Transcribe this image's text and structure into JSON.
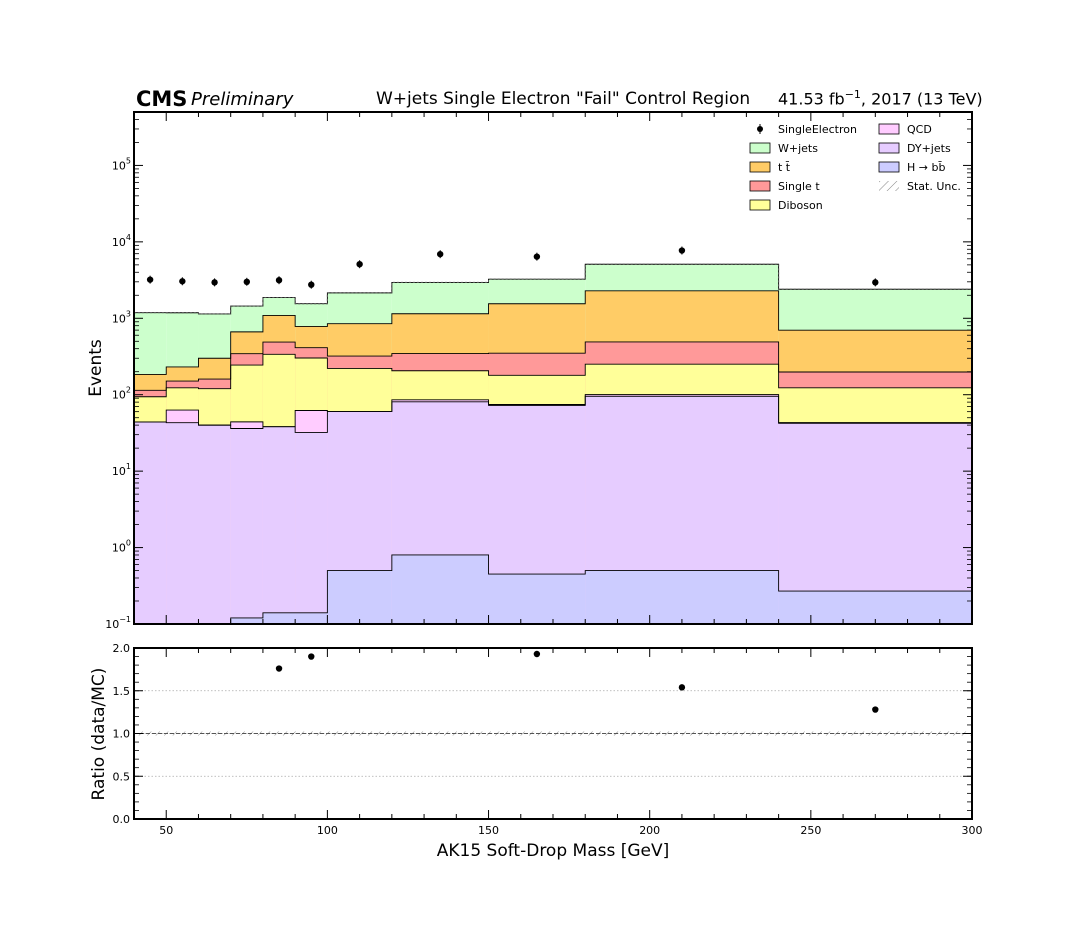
{
  "header": {
    "experiment": "CMS",
    "status": "Preliminary",
    "title": "W+jets Single Electron \"Fail\" Control Region",
    "lumi_value": "41.53 fb",
    "lumi_exp": "−1",
    "lumi_suffix": ", 2017 (13 TeV)"
  },
  "chart_data": [
    {
      "type": "area",
      "panel": "main",
      "stacked": true,
      "step": true,
      "log_y": true,
      "xlim": [
        40,
        300
      ],
      "ylim": [
        0.1,
        500000
      ],
      "ylabel": "Events",
      "bin_edges": [
        40,
        50,
        60,
        70,
        80,
        90,
        100,
        120,
        150,
        180,
        240,
        300
      ],
      "series": [
        {
          "name": "H → bb̄",
          "color": "#ccccff",
          "values": [
            0,
            0,
            0,
            0.12,
            0.14,
            0.14,
            0.5,
            0.8,
            0.45,
            0.5,
            0.27
          ]
        },
        {
          "name": "DY+jets",
          "color": "#e6ccff",
          "values": [
            44,
            43,
            40,
            36,
            38,
            32,
            60,
            80,
            72,
            95,
            42
          ]
        },
        {
          "name": "QCD",
          "color": "#ffccff",
          "values": [
            0,
            20,
            0,
            8,
            0,
            30,
            0,
            5,
            2,
            5,
            1
          ]
        },
        {
          "name": "Diboson",
          "color": "#ffff99",
          "values": [
            50,
            60,
            80,
            200,
            300,
            240,
            160,
            120,
            105,
            150,
            80
          ]
        },
        {
          "name": "Single t",
          "color": "#ff9999",
          "values": [
            20,
            28,
            40,
            100,
            150,
            110,
            100,
            140,
            170,
            240,
            75
          ]
        },
        {
          "name": "t t̄",
          "color": "#ffcc66",
          "values": [
            70,
            80,
            140,
            320,
            600,
            370,
            530,
            800,
            1200,
            1800,
            500
          ]
        },
        {
          "name": "W+jets",
          "color": "#ccffcc",
          "values": [
            1000,
            950,
            840,
            780,
            780,
            770,
            1300,
            1800,
            1700,
            2800,
            1700
          ]
        }
      ],
      "data_points": {
        "name": "SingleElectron",
        "x": [
          45,
          55,
          65,
          75,
          85,
          95,
          110,
          135,
          165,
          210,
          270
        ],
        "y": [
          3200,
          3050,
          2950,
          3000,
          3150,
          2750,
          5100,
          6900,
          6400,
          7700,
          2950
        ]
      },
      "legend": {
        "placement": "top-right",
        "entries": [
          "SingleElectron",
          "W+jets",
          "t t̄",
          "Single t",
          "Diboson",
          "QCD",
          "DY+jets",
          "H → bb̄",
          "Stat. Unc."
        ]
      }
    },
    {
      "type": "scatter",
      "panel": "ratio",
      "xlim": [
        40,
        300
      ],
      "ylim": [
        0.0,
        2.0
      ],
      "xlabel": "AK15 Soft-Drop Mass [GeV]",
      "ylabel": "Ratio (data/MC)",
      "x_ticks": [
        50,
        100,
        150,
        200,
        250,
        300
      ],
      "y_ticks": [
        0.0,
        0.5,
        1.0,
        1.5,
        2.0
      ],
      "reference_line": 1.0,
      "grid": "horizontal dotted",
      "x": [
        85,
        95,
        165,
        210,
        270
      ],
      "y": [
        1.76,
        1.9,
        1.93,
        1.54,
        1.28
      ]
    }
  ]
}
